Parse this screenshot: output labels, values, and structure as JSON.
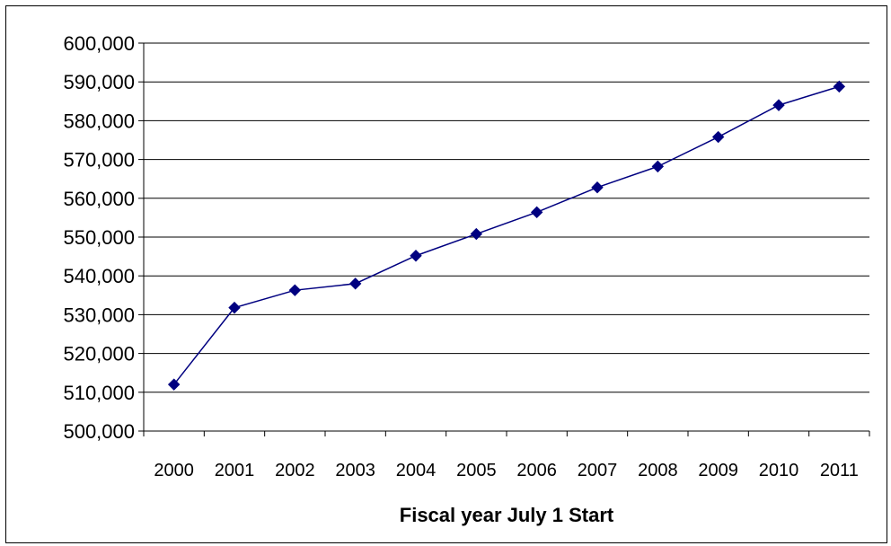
{
  "chart_data": {
    "type": "line",
    "title": "",
    "xlabel": "Fiscal year July 1 Start",
    "ylabel": "",
    "categories": [
      "2000",
      "2001",
      "2002",
      "2003",
      "2004",
      "2005",
      "2006",
      "2007",
      "2008",
      "2009",
      "2010",
      "2011"
    ],
    "series": [
      {
        "values": [
          512000,
          531800,
          536300,
          538000,
          545200,
          550800,
          556400,
          562800,
          568200,
          575800,
          584000,
          588800
        ],
        "color": "#000080",
        "marker": "diamond"
      }
    ],
    "ylim": [
      500000,
      600000
    ],
    "y_ticks": [
      "500,000",
      "510,000",
      "520,000",
      "530,000",
      "540,000",
      "550,000",
      "560,000",
      "570,000",
      "580,000",
      "590,000",
      "600,000"
    ],
    "y_tick_values": [
      500000,
      510000,
      520000,
      530000,
      540000,
      550000,
      560000,
      570000,
      580000,
      590000,
      600000
    ],
    "grid": "horizontal",
    "legend": "none"
  }
}
